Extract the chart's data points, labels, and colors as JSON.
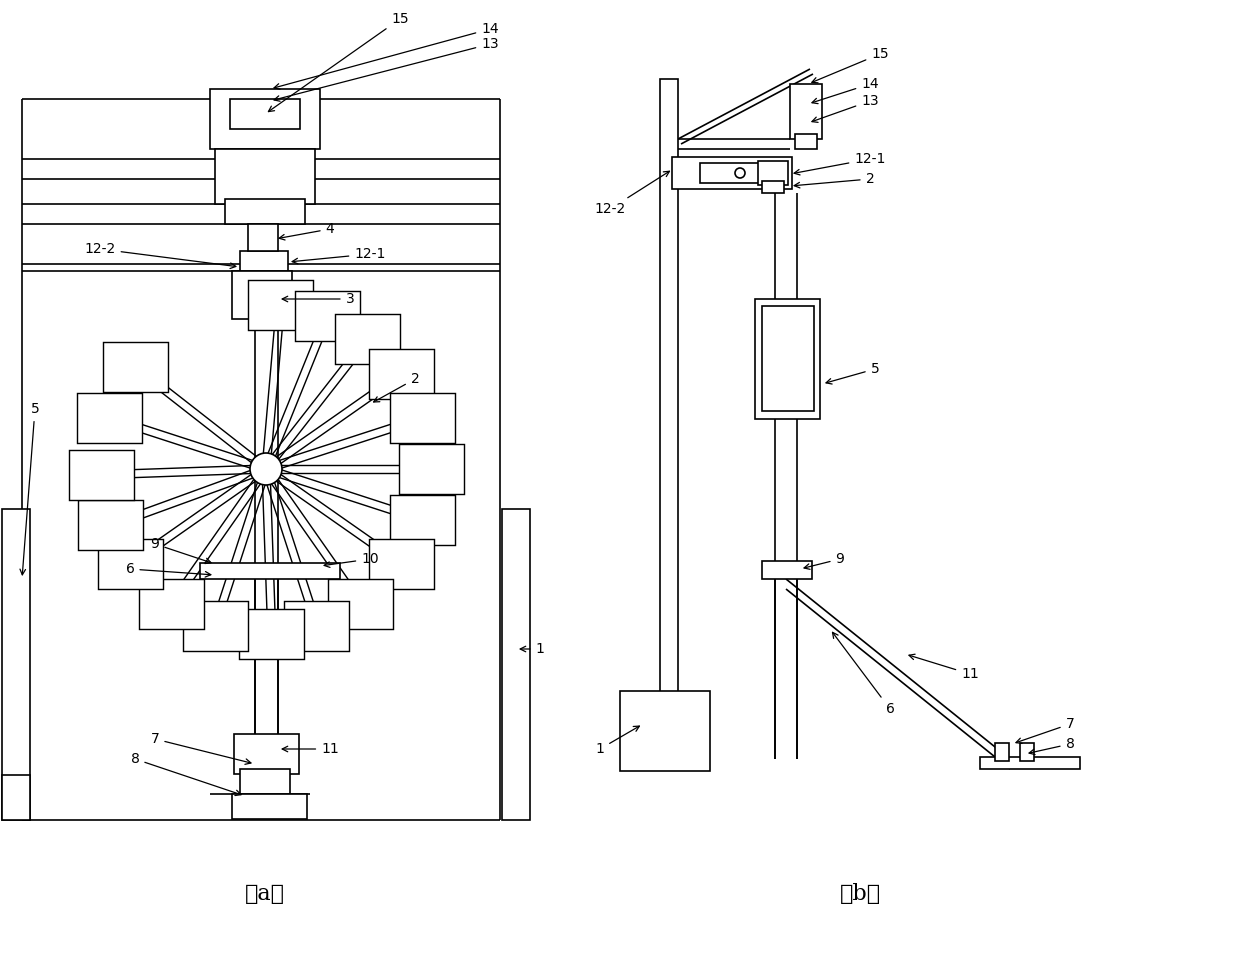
{
  "fig_width": 12.4,
  "fig_height": 9.59,
  "bg_color": "#ffffff",
  "line_color": "#000000",
  "line_width": 1.2,
  "label_fontsize": 10,
  "caption_fontsize": 16,
  "diagram_a_caption": "（a）",
  "diagram_b_caption": "（b）"
}
